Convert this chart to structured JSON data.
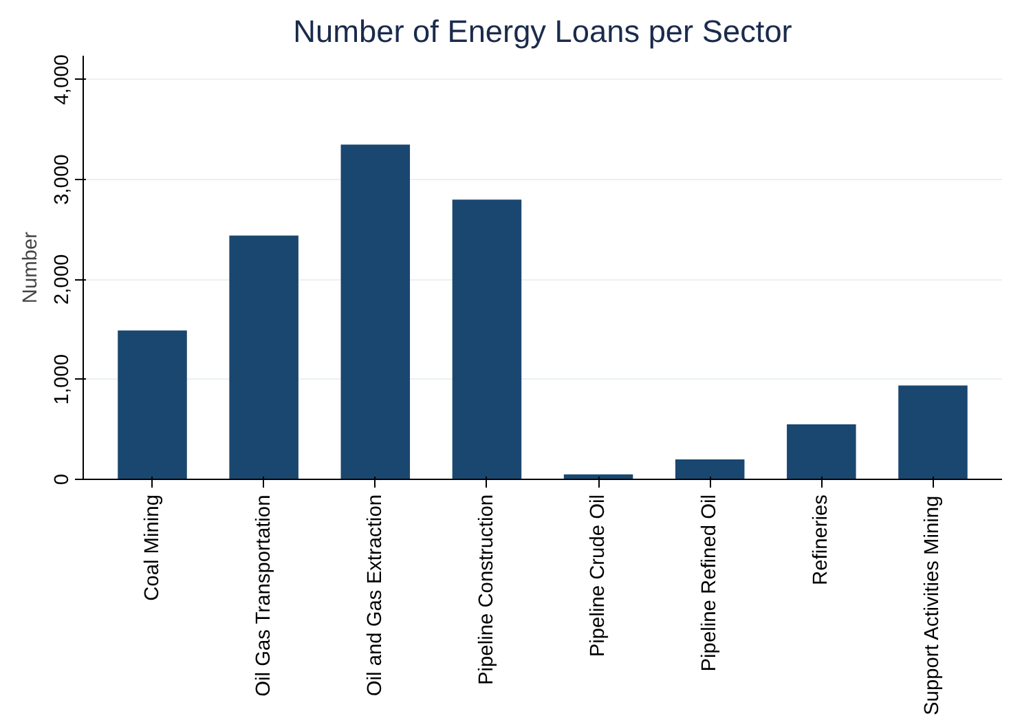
{
  "chart_data": {
    "type": "bar",
    "title": "Number of Energy Loans per Sector",
    "ylabel": "Number",
    "categories": [
      "Coal Mining",
      "Oil Gas Transportation",
      "Oil and Gas Extraction",
      "Pipeline Construction",
      "Pipeline Crude Oil",
      "Pipeline Refined Oil",
      "Refineries",
      "Support Activities Mining"
    ],
    "values": [
      1490,
      2440,
      3350,
      2800,
      50,
      200,
      550,
      940
    ],
    "color": "#1a476f",
    "ylim": [
      0,
      4240
    ],
    "yticks": [
      0,
      {
        "value": 1000,
        "label": "1,000"
      },
      {
        "value": 2000,
        "label": "2,000"
      },
      {
        "value": 3000,
        "label": "3,000"
      },
      {
        "value": 4000,
        "label": "4,000"
      }
    ],
    "grid": "y"
  }
}
